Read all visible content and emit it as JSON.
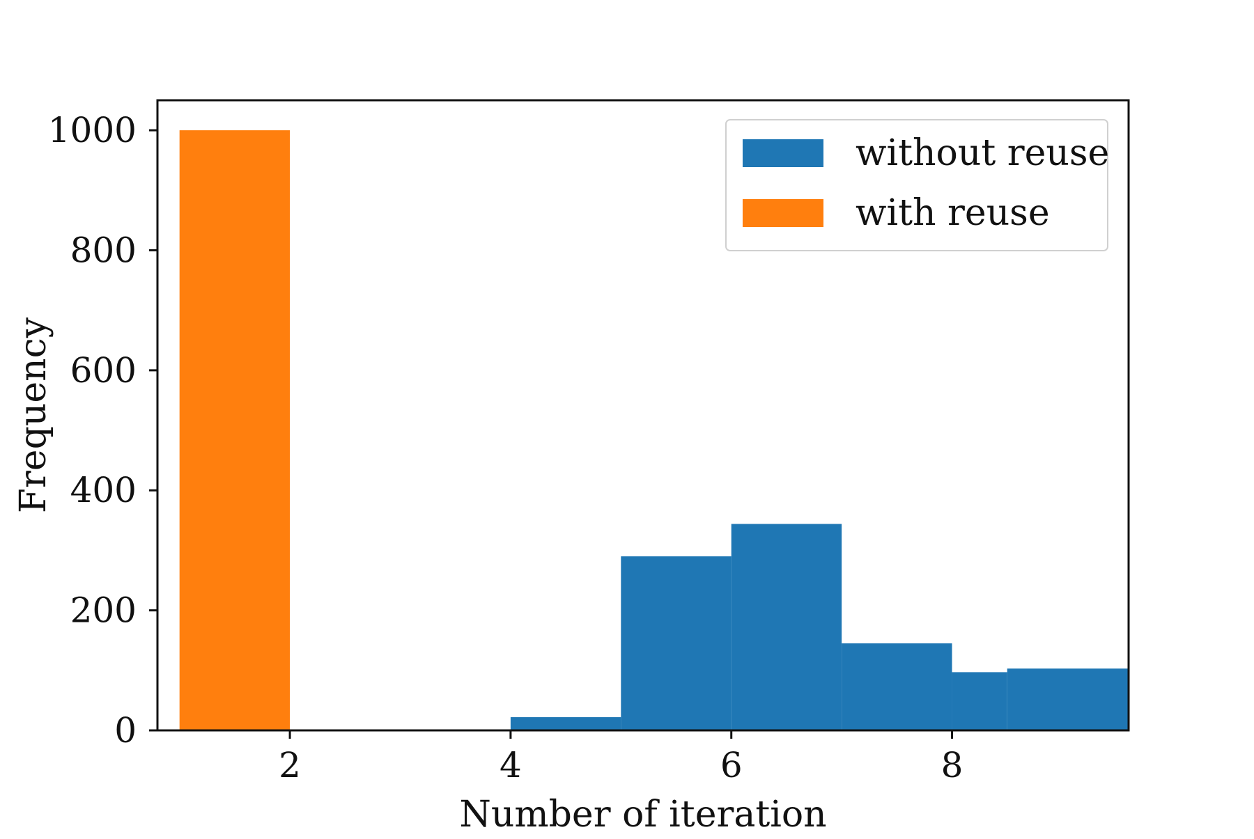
{
  "chart_data": {
    "type": "bar",
    "title": "",
    "xlabel": "Number of iteration",
    "ylabel": "Frequency",
    "xlim": [
      0.8,
      9.6
    ],
    "ylim": [
      0,
      1050
    ],
    "xticks": [
      2,
      4,
      6,
      8
    ],
    "xtick_labels": [
      "2",
      "4",
      "6",
      "8"
    ],
    "yticks": [
      0,
      200,
      400,
      600,
      800,
      1000
    ],
    "ytick_labels": [
      "0",
      "200",
      "400",
      "600",
      "800",
      "1000"
    ],
    "grid": false,
    "legend_position": "top-right",
    "series": [
      {
        "name": "without reuse",
        "color": "#1f77b4",
        "bins": [
          {
            "x0": 4.0,
            "x1": 5.0,
            "value": 22
          },
          {
            "x0": 5.0,
            "x1": 6.0,
            "value": 290
          },
          {
            "x0": 6.0,
            "x1": 7.0,
            "value": 344
          },
          {
            "x0": 7.0,
            "x1": 8.0,
            "value": 145
          },
          {
            "x0": 8.0,
            "x1": 8.5,
            "value": 97
          },
          {
            "x0": 8.5,
            "x1": 9.6,
            "value": 103
          }
        ]
      },
      {
        "name": "with reuse",
        "color": "#ff7f0e",
        "bins": [
          {
            "x0": 1.0,
            "x1": 2.0,
            "value": 1000
          },
          {
            "x0": 2.0,
            "x1": 2.8,
            "value": 1
          }
        ]
      }
    ]
  }
}
